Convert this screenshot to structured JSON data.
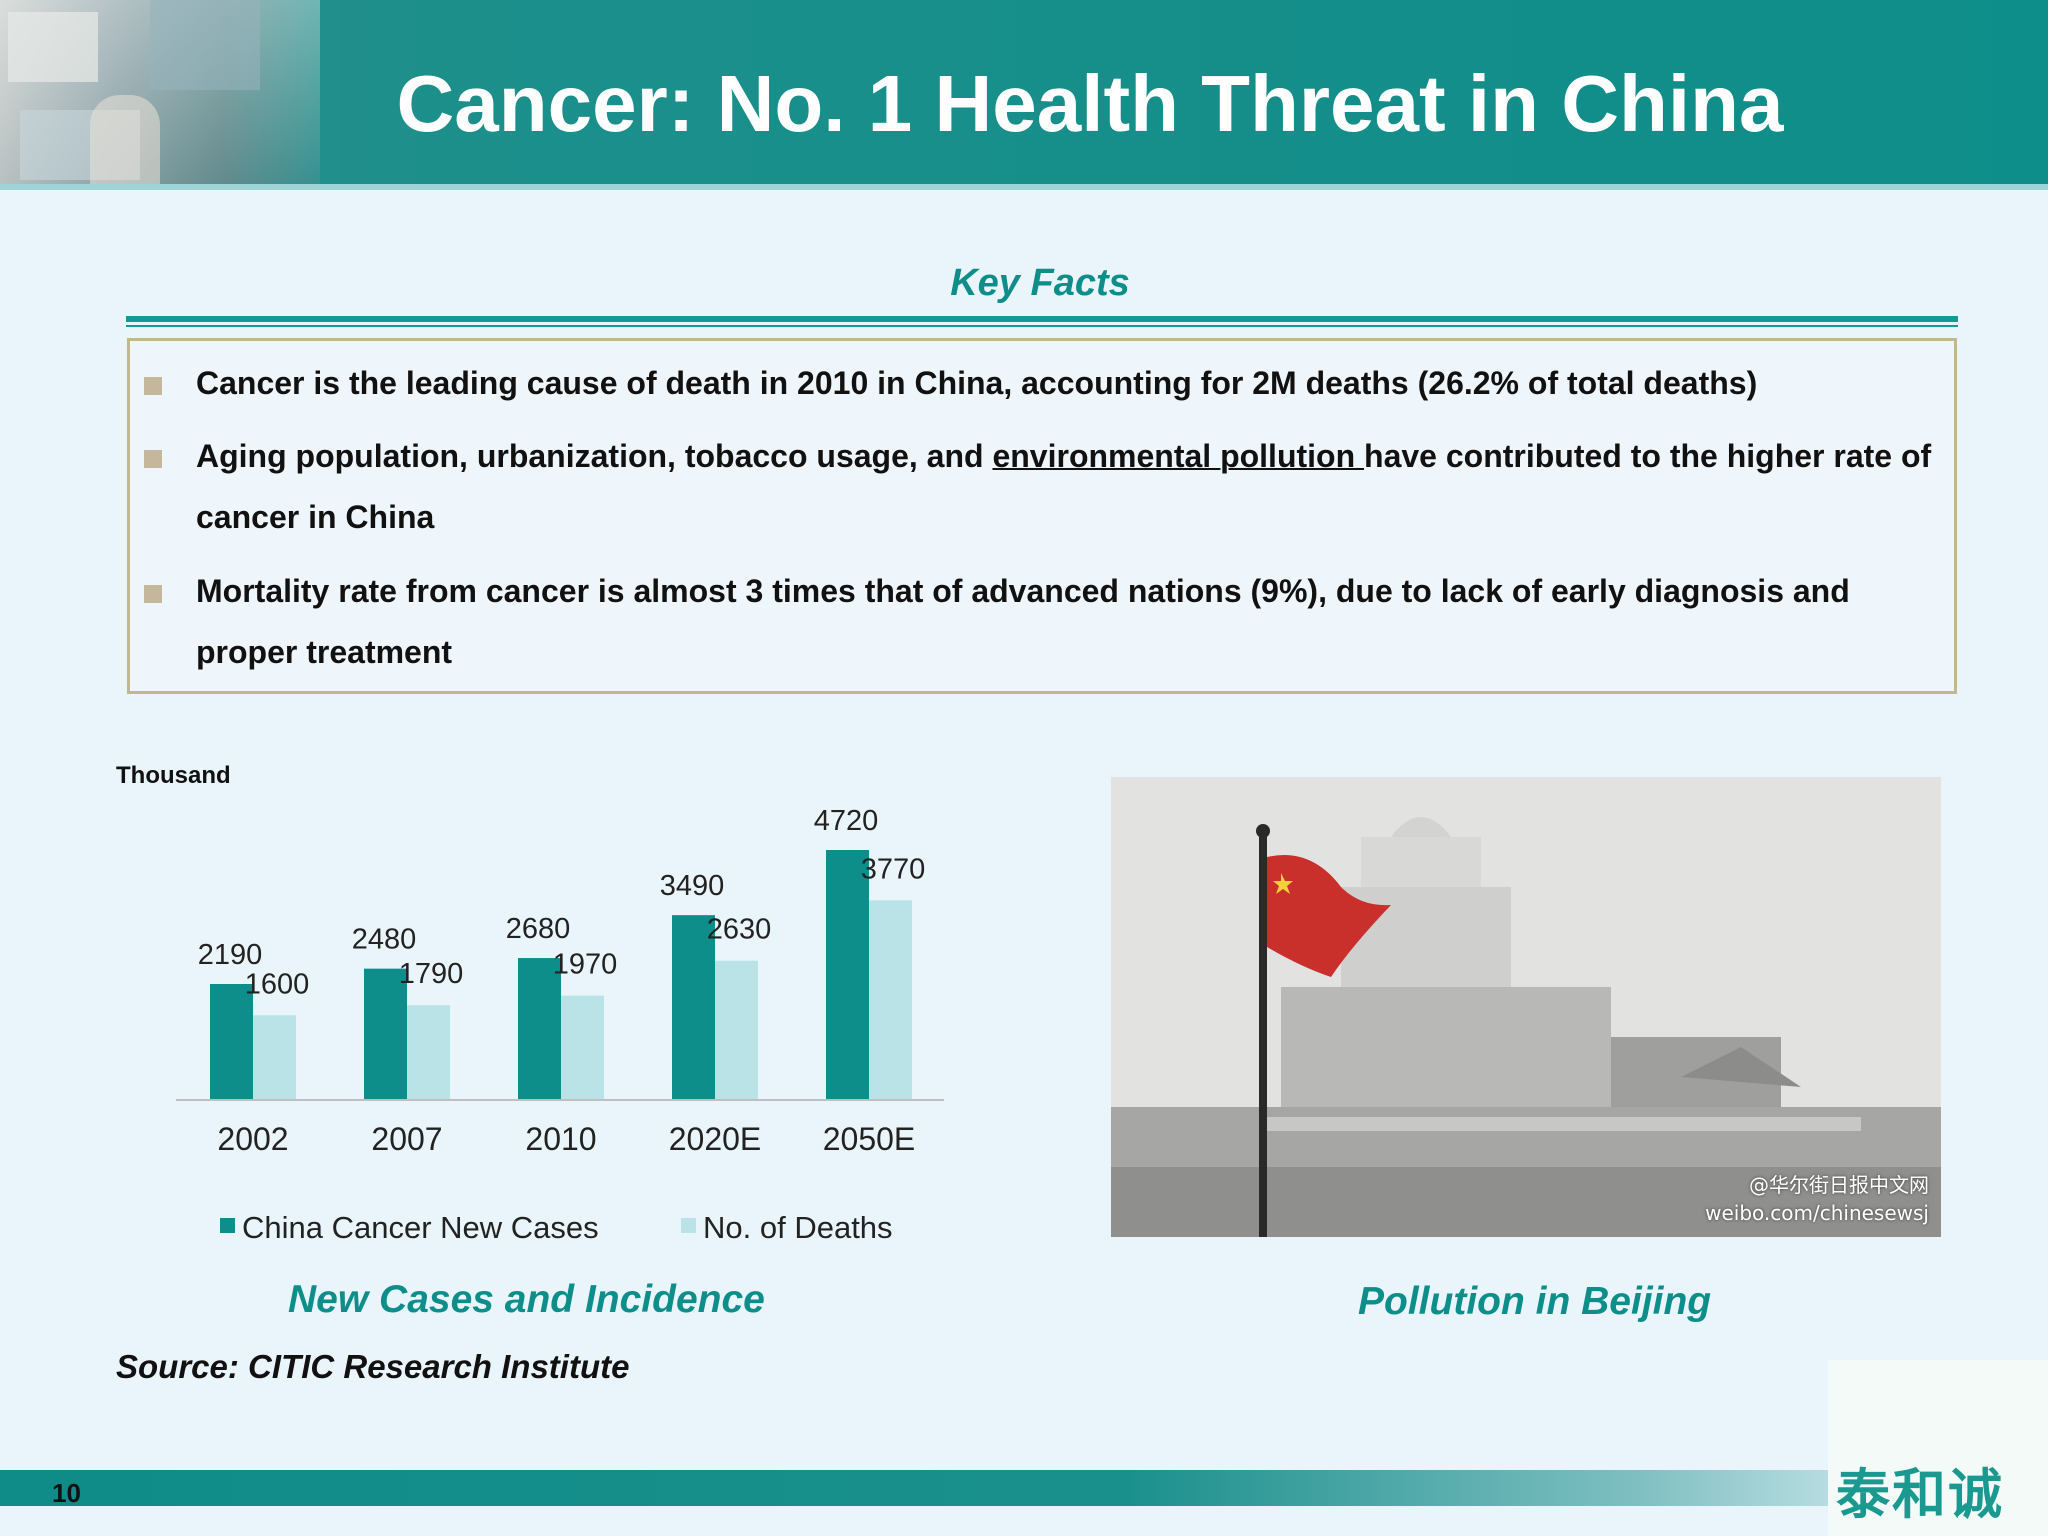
{
  "header": {
    "title": "Cancer: No. 1 Health Threat in China"
  },
  "key_facts": {
    "title": "Key Facts",
    "items": [
      {
        "text": "Cancer is the leading cause of death in 2010 in China, accounting for 2M deaths (26.2% of total deaths)"
      },
      {
        "before": "Aging population, urbanization, tobacco usage, and ",
        "underlined": "environmental pollution ",
        "after": "have contributed to the higher rate of cancer in China"
      },
      {
        "text": "Mortality rate from cancer is almost 3 times that of advanced nations (9%), due to lack of early diagnosis and proper treatment"
      }
    ]
  },
  "chart_data": {
    "type": "bar",
    "unit_label": "Thousand",
    "categories": [
      "2002",
      "2007",
      "2010",
      "2020E",
      "2050E"
    ],
    "series": [
      {
        "name": "China Cancer New Cases",
        "values": [
          2190,
          2480,
          2680,
          3490,
          4720
        ]
      },
      {
        "name": "No. of Deaths",
        "values": [
          1600,
          1790,
          1970,
          2630,
          3770
        ]
      }
    ],
    "title": "New Cases and Incidence",
    "legend_position": "bottom",
    "ylim": [
      0,
      4720
    ],
    "grid": false,
    "colors": [
      "#0e8e8a",
      "#b9e3e6"
    ]
  },
  "photo": {
    "caption": "Pollution in Beijing",
    "watermark_handle": "@华尔街日报中文网",
    "watermark_url": "weibo.com/chinesewsj"
  },
  "source": "Source: CITIC Research Institute",
  "footer": {
    "page_number": "10",
    "logo_text": "泰和诚"
  }
}
